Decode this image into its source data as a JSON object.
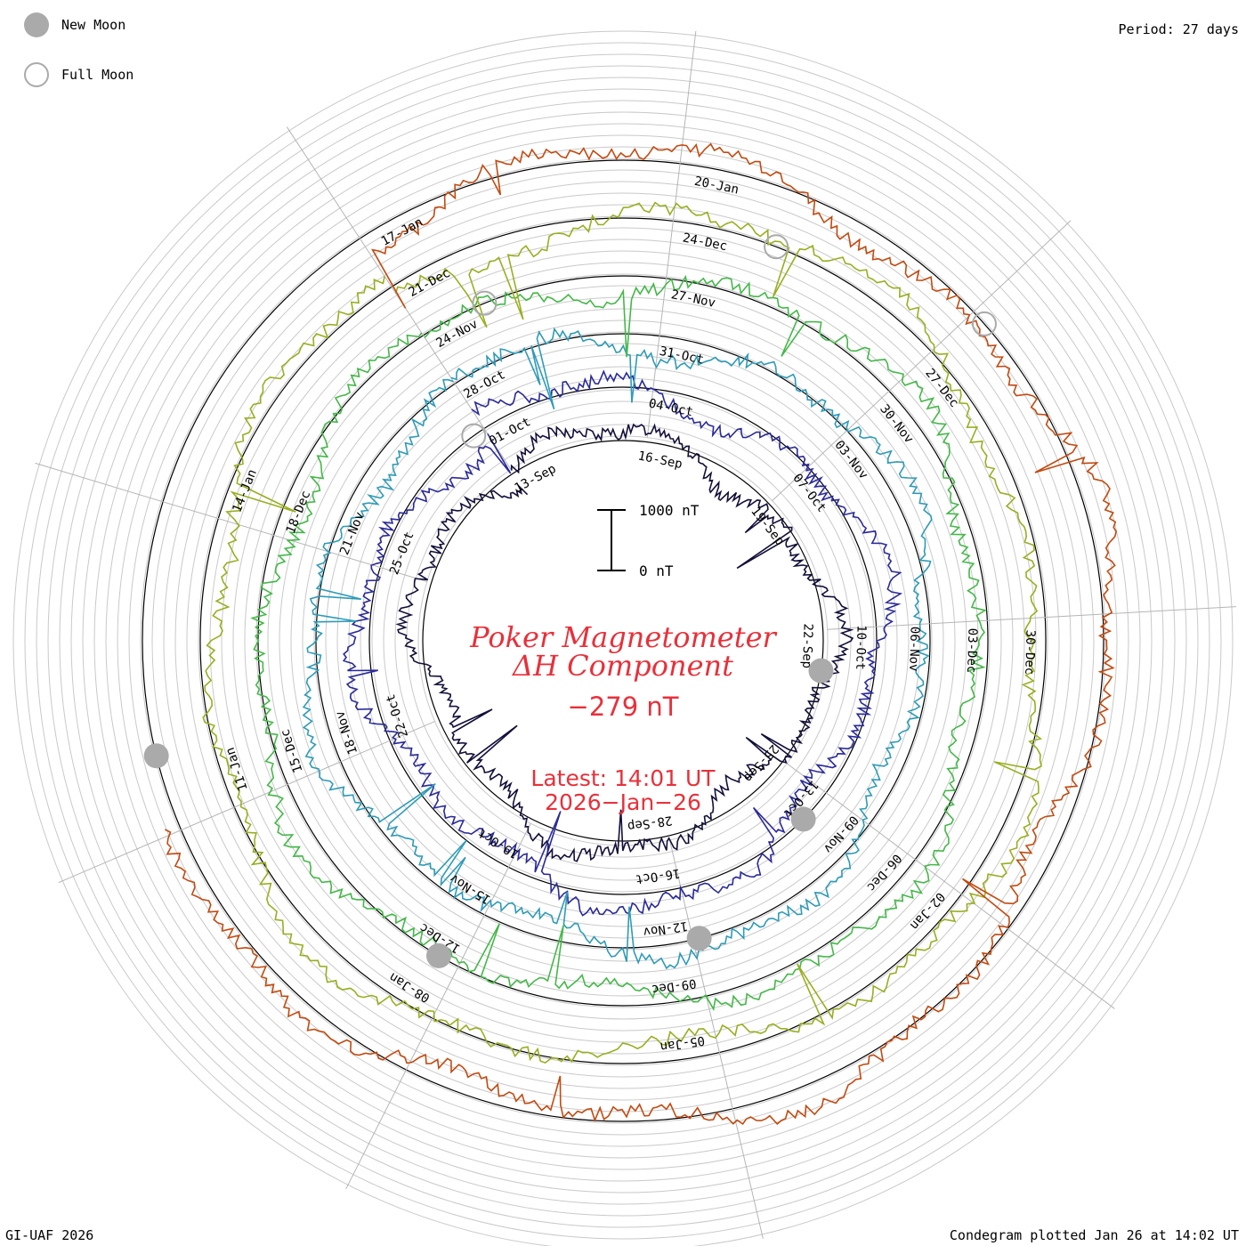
{
  "legend": {
    "new_moon_label": "New Moon",
    "full_moon_label": "Full Moon",
    "new_moon_color": "#aaaaaa",
    "full_moon_color": "#aaaaaa"
  },
  "period_label": "Period: 27 days",
  "title_line1": "Poker Magnetometer",
  "title_line2": "ΔH Component",
  "current_value": "−279 nT",
  "latest_line1": "Latest: 14:01 UT",
  "latest_line2": "2026−Jan−26",
  "credit": "GI-UAF 2026",
  "plot_time": "Condegram plotted Jan 26 at 14:02 UT",
  "accent_color": "#e8303a",
  "scale_bar": {
    "top_label": "1000 nT",
    "bottom_label": "0 nT",
    "top_value": 1000,
    "bottom_value": 0
  },
  "chart_data": {
    "type": "line",
    "subtype": "condegram",
    "period_days": 27,
    "unit": "nT",
    "latest_value": -279,
    "series": [
      {
        "color": "#12103a",
        "date_labels": [
          "13-Sep",
          "16-Sep",
          "19-Sep",
          "22-Sep",
          "25-Sep",
          "28-Sep"
        ]
      },
      {
        "color": "#2a2a9a",
        "date_labels": [
          "01-Oct",
          "04-Oct",
          "07-Oct",
          "10-Oct",
          "13-Oct",
          "16-Oct",
          "19-Oct",
          "22-Oct",
          "25-Oct"
        ]
      },
      {
        "color": "#2e9bb8",
        "date_labels": [
          "28-Oct",
          "31-Oct",
          "03-Nov",
          "06-Nov",
          "09-Nov",
          "12-Nov",
          "15-Nov",
          "18-Nov",
          "21-Nov"
        ]
      },
      {
        "color": "#44b848",
        "date_labels": [
          "24-Nov",
          "27-Nov",
          "30-Nov",
          "03-Dec",
          "06-Dec",
          "09-Dec",
          "12-Dec",
          "15-Dec",
          "18-Dec"
        ]
      },
      {
        "color": "#9aae20",
        "date_labels": [
          "21-Dec",
          "24-Dec",
          "27-Dec",
          "30-Dec",
          "02-Jan",
          "05-Jan",
          "08-Jan",
          "11-Jan",
          "14-Jan"
        ]
      },
      {
        "color": "#c24a10",
        "date_labels": [
          "17-Jan",
          "20-Jan"
        ]
      }
    ],
    "new_moons": [
      "21-Sep",
      "21-Oct",
      "20-Nov",
      "20-Dec",
      "18-Jan"
    ],
    "full_moons": [
      "07-Oct",
      "05-Nov",
      "04-Dec",
      "03-Jan"
    ]
  }
}
